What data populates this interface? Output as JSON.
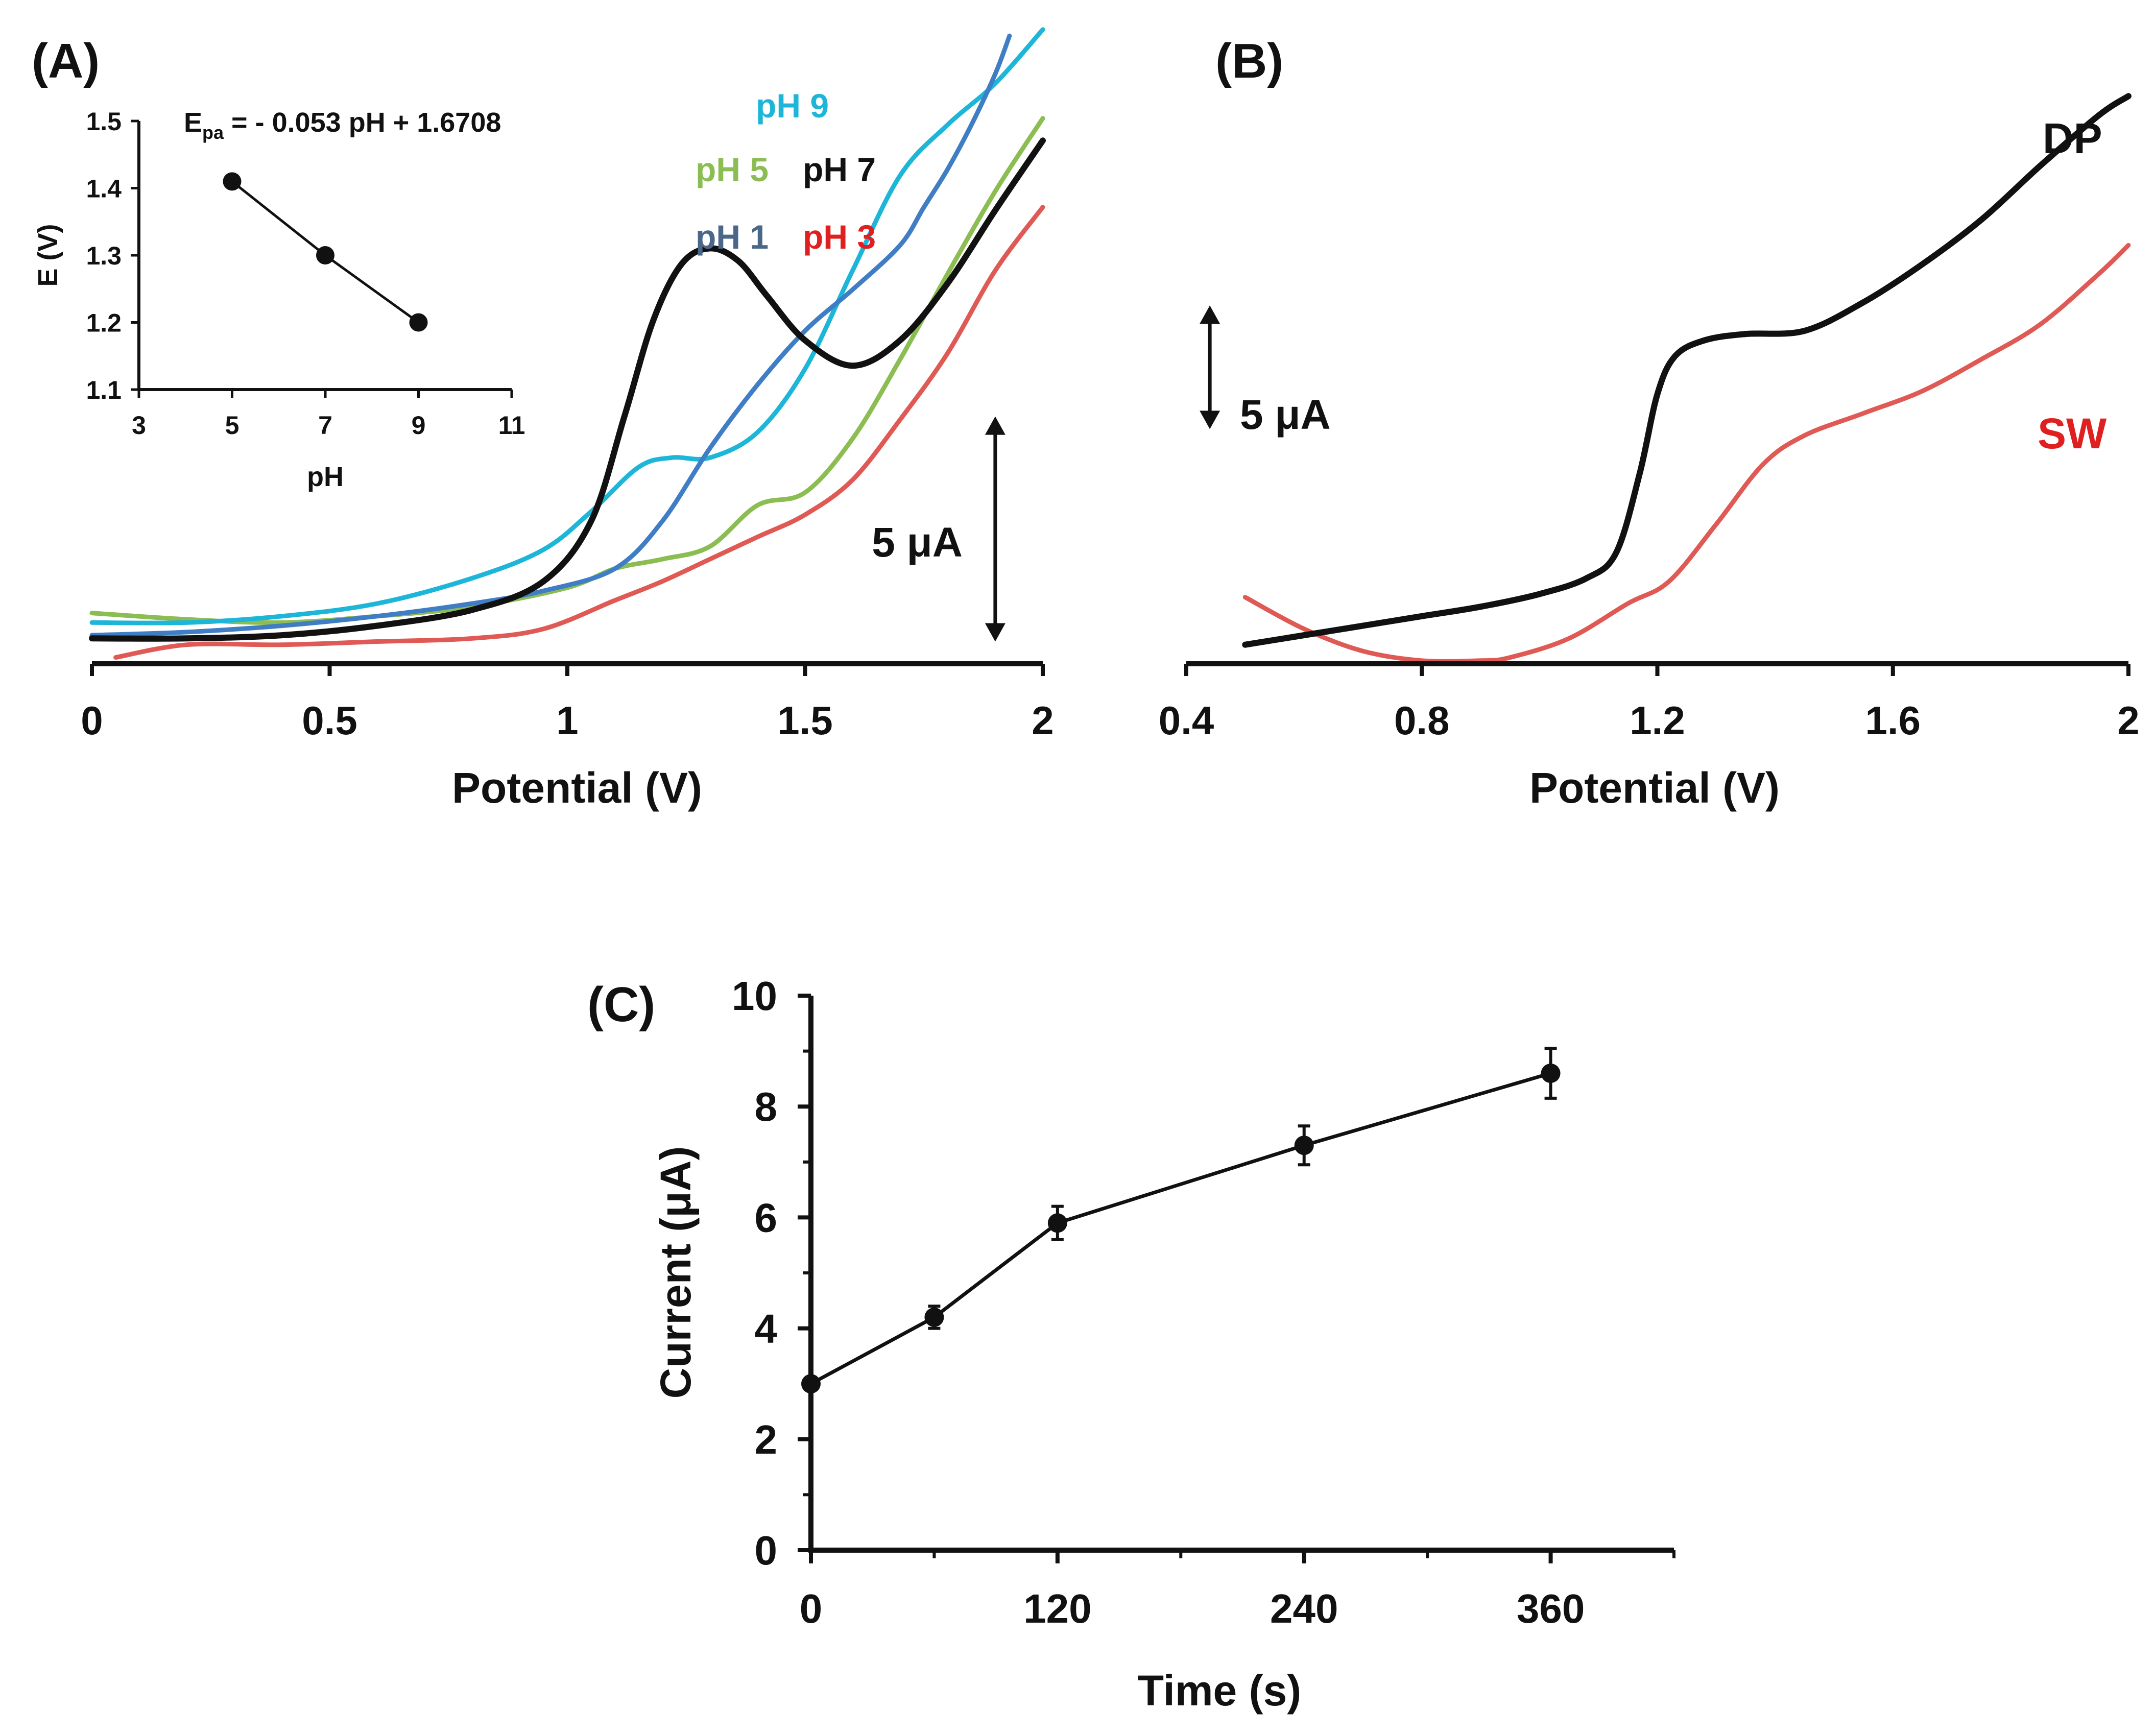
{
  "panels": {
    "A": {
      "label": "(A)"
    },
    "B": {
      "label": "(B)"
    },
    "C": {
      "label": "(C)"
    }
  },
  "colors": {
    "black": "#111111",
    "pH1": "#3f7dc4",
    "pH3": "#e05a55",
    "pH5": "#8cbd52",
    "pH7": "#111111",
    "pH9": "#1db6d8",
    "DP": "#111111",
    "SW": "#e05a55"
  },
  "chart_data": [
    {
      "id": "A",
      "type": "line",
      "title": "(A)",
      "xlabel": "Potential (V)",
      "ylabel": "",
      "xlim": [
        0,
        2
      ],
      "ylim": [
        0,
        19
      ],
      "xticks": [
        0,
        0.5,
        1,
        1.5,
        2
      ],
      "xtick_labels": [
        "0",
        "0.5",
        "1",
        "1.5",
        "2"
      ],
      "scale_bar": {
        "label": "5 μA",
        "value": 5,
        "x": 1.9,
        "y_from": 0.7,
        "y_to": 7.8
      },
      "series": [
        {
          "name": "pH 1",
          "color_key": "pH1",
          "x": [
            0,
            0.2,
            0.4,
            0.6,
            0.8,
            0.95,
            1.1,
            1.2,
            1.3,
            1.4,
            1.5,
            1.6,
            1.7,
            1.75,
            1.8,
            1.85,
            1.9,
            1.93
          ],
          "y": [
            0.9,
            1.0,
            1.2,
            1.5,
            1.9,
            2.3,
            3.0,
            4.5,
            6.8,
            8.8,
            10.5,
            11.8,
            13.2,
            14.4,
            15.6,
            17.0,
            18.6,
            19.8
          ]
        },
        {
          "name": "pH 3",
          "color_key": "pH3",
          "x": [
            0.05,
            0.2,
            0.4,
            0.6,
            0.8,
            0.95,
            1.1,
            1.2,
            1.3,
            1.4,
            1.5,
            1.6,
            1.7,
            1.8,
            1.9,
            2.0
          ],
          "y": [
            0.2,
            0.6,
            0.6,
            0.7,
            0.8,
            1.1,
            2.0,
            2.6,
            3.3,
            4.0,
            4.7,
            5.8,
            7.7,
            9.8,
            12.4,
            14.4
          ]
        },
        {
          "name": "pH 5",
          "color_key": "pH5",
          "x": [
            0,
            0.2,
            0.4,
            0.6,
            0.8,
            1.0,
            1.1,
            1.2,
            1.3,
            1.4,
            1.5,
            1.6,
            1.7,
            1.8,
            1.9,
            2.0
          ],
          "y": [
            1.6,
            1.4,
            1.3,
            1.5,
            1.8,
            2.4,
            3.0,
            3.3,
            3.7,
            5.0,
            5.4,
            7.1,
            9.6,
            12.3,
            14.9,
            17.2
          ]
        },
        {
          "name": "pH 7",
          "color_key": "pH7",
          "x": [
            0,
            0.2,
            0.4,
            0.6,
            0.8,
            0.95,
            1.05,
            1.12,
            1.18,
            1.24,
            1.3,
            1.36,
            1.42,
            1.5,
            1.6,
            1.7,
            1.8,
            1.9,
            2.0
          ],
          "y": [
            0.8,
            0.8,
            0.9,
            1.2,
            1.7,
            2.6,
            4.5,
            7.8,
            10.8,
            12.6,
            13.1,
            12.7,
            11.6,
            10.2,
            9.4,
            10.2,
            12.0,
            14.3,
            16.5
          ]
        },
        {
          "name": "pH 9",
          "color_key": "pH9",
          "x": [
            0,
            0.2,
            0.4,
            0.6,
            0.8,
            0.95,
            1.05,
            1.15,
            1.22,
            1.3,
            1.4,
            1.5,
            1.6,
            1.7,
            1.8,
            1.9,
            2.0
          ],
          "y": [
            1.3,
            1.3,
            1.5,
            1.9,
            2.7,
            3.6,
            4.8,
            6.2,
            6.5,
            6.5,
            7.3,
            9.3,
            12.4,
            15.4,
            17.0,
            18.3,
            20.0
          ]
        }
      ],
      "series_labels": [
        "pH 9",
        "pH 5",
        "pH 7",
        "pH 1",
        "pH 3"
      ]
    },
    {
      "id": "A-inset",
      "type": "scatter",
      "title": "",
      "equation_prefix": "E",
      "equation_subscript": "pa",
      "equation_rest": " = - 0.053 pH + 1.6708",
      "xlabel": "pH",
      "ylabel": "E (V)",
      "xlim": [
        3,
        11
      ],
      "ylim": [
        1.1,
        1.5
      ],
      "xticks": [
        3,
        5,
        7,
        9,
        11
      ],
      "xtick_labels": [
        "3",
        "5",
        "7",
        "9",
        "11"
      ],
      "yticks": [
        1.1,
        1.2,
        1.3,
        1.4,
        1.5
      ],
      "ytick_labels": [
        "1.1",
        "1.2",
        "1.3",
        "1.4",
        "1.5"
      ],
      "x": [
        5,
        7,
        9
      ],
      "y": [
        1.41,
        1.3,
        1.2
      ]
    },
    {
      "id": "B",
      "type": "line",
      "title": "(B)",
      "xlabel": "Potential (V)",
      "ylabel": "",
      "xlim": [
        0.4,
        2
      ],
      "ylim": [
        0,
        19
      ],
      "xticks": [
        0.4,
        0.8,
        1.2,
        1.6,
        2
      ],
      "xtick_labels": [
        "0.4",
        "0.8",
        "1.2",
        "1.6",
        "2"
      ],
      "scale_bar": {
        "label": "5 μA",
        "value": 5,
        "x": 0.44,
        "y_from": 7.4,
        "y_to": 11.3
      },
      "series": [
        {
          "name": "DP",
          "color_key": "DP",
          "x": [
            0.5,
            0.6,
            0.7,
            0.8,
            0.9,
            1.0,
            1.08,
            1.13,
            1.17,
            1.2,
            1.23,
            1.28,
            1.35,
            1.45,
            1.55,
            1.65,
            1.75,
            1.85,
            1.95,
            2.0
          ],
          "y": [
            0.6,
            0.9,
            1.2,
            1.5,
            1.8,
            2.2,
            2.7,
            3.5,
            6.0,
            8.5,
            9.7,
            10.2,
            10.4,
            10.5,
            11.4,
            12.6,
            14.0,
            15.7,
            17.3,
            17.9
          ]
        },
        {
          "name": "SW",
          "color_key": "SW",
          "x": [
            0.5,
            0.6,
            0.7,
            0.8,
            0.9,
            0.95,
            1.05,
            1.15,
            1.22,
            1.3,
            1.38,
            1.45,
            1.55,
            1.65,
            1.75,
            1.85,
            1.95,
            2.0
          ],
          "y": [
            2.1,
            1.1,
            0.4,
            0.1,
            0.1,
            0.2,
            0.8,
            1.9,
            2.6,
            4.4,
            6.3,
            7.2,
            7.9,
            8.6,
            9.6,
            10.7,
            12.3,
            13.2
          ]
        }
      ]
    },
    {
      "id": "C",
      "type": "line",
      "title": "(C)",
      "xlabel": "Time (s)",
      "ylabel": "Current (μA)",
      "xlim": [
        0,
        420
      ],
      "ylim": [
        0,
        10
      ],
      "xticks": [
        0,
        120,
        240,
        360
      ],
      "xtick_labels": [
        "0",
        "120",
        "240",
        "360"
      ],
      "yticks": [
        0,
        2,
        4,
        6,
        8,
        10
      ],
      "ytick_labels": [
        "0",
        "2",
        "4",
        "6",
        "8",
        "10"
      ],
      "x": [
        0,
        60,
        120,
        240,
        360
      ],
      "y": [
        3.0,
        4.2,
        5.9,
        7.3,
        8.6
      ],
      "error": [
        0.1,
        0.2,
        0.3,
        0.35,
        0.45
      ]
    }
  ]
}
